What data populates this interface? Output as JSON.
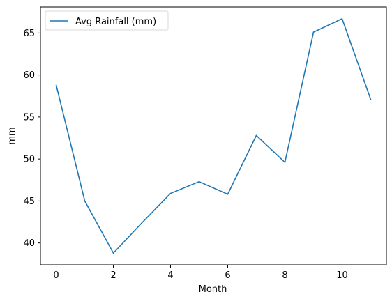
{
  "chart_data": {
    "type": "line",
    "title": "",
    "xlabel": "Month",
    "ylabel": "mm",
    "xlim": [
      -0.55,
      11.55
    ],
    "ylim": [
      37.4,
      68.1
    ],
    "xticks": [
      0,
      2,
      4,
      6,
      8,
      10
    ],
    "yticks": [
      40,
      45,
      50,
      55,
      60,
      65
    ],
    "grid": false,
    "legend_position": "top-left",
    "series": [
      {
        "name": "Avg Rainfall (mm)",
        "color": "#1f77b4",
        "x": [
          0,
          1,
          2,
          3,
          4,
          5,
          6,
          7,
          8,
          9,
          10,
          11
        ],
        "values": [
          58.8,
          45.0,
          38.8,
          42.4,
          45.9,
          47.3,
          45.8,
          52.8,
          49.6,
          65.1,
          66.7,
          57.1
        ]
      }
    ]
  }
}
